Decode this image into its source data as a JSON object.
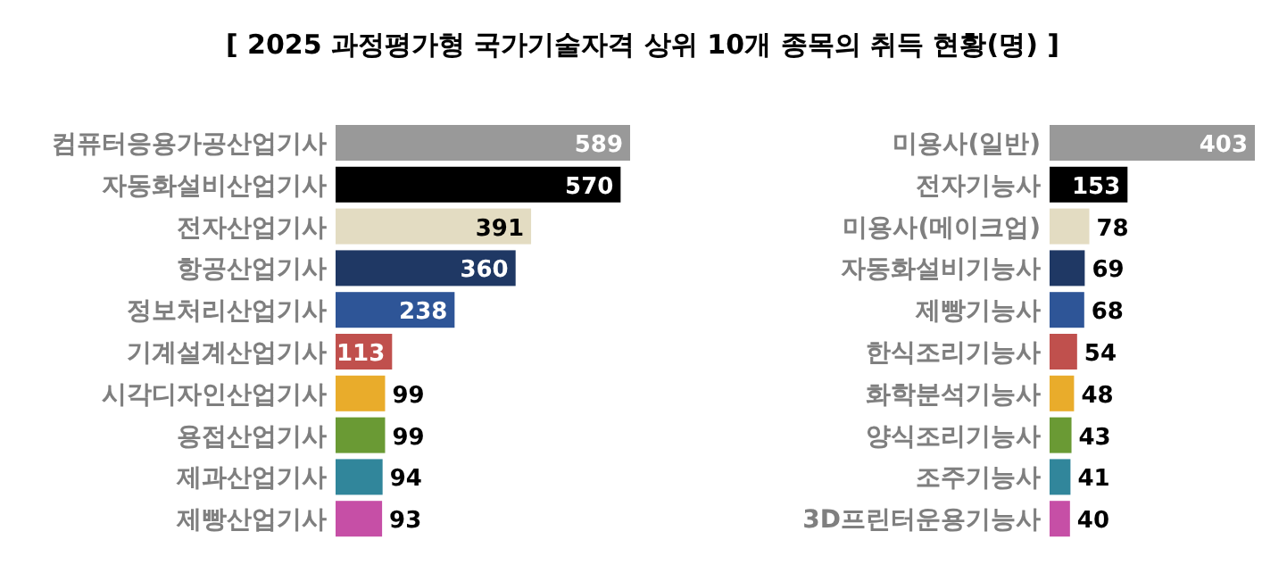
{
  "chart_data": [
    {
      "type": "bar",
      "orientation": "horizontal",
      "title": "[ 2025 과정평가형 국가기술자격 상위 10개 종목의 취득 현황(명) ]",
      "categories": [
        "컴퓨터응용가공산업기사",
        "자동화설비산업기사",
        "전자산업기사",
        "항공산업기사",
        "정보처리산업기사",
        "기계설계산업기사",
        "시각디자인산업기사",
        "용접산업기사",
        "제과산업기사",
        "제빵산업기사"
      ],
      "values": [
        589,
        570,
        391,
        360,
        238,
        113,
        99,
        99,
        94,
        93
      ],
      "colors": [
        "#999999",
        "#000000",
        "#e3dcc2",
        "#1f3864",
        "#2e5597",
        "#c0504d",
        "#e9ac2b",
        "#6a9a34",
        "#31869b",
        "#c64fa6"
      ],
      "data_labels": true
    },
    {
      "type": "bar",
      "orientation": "horizontal",
      "categories": [
        "미용사(일반)",
        "전자기능사",
        "미용사(메이크업)",
        "자동화설비기능사",
        "제빵기능사",
        "한식조리기능사",
        "화학분석기능사",
        "양식조리기능사",
        "조주기능사",
        "3D프린터운용기능사"
      ],
      "values": [
        403,
        153,
        78,
        69,
        68,
        54,
        48,
        43,
        41,
        40
      ],
      "colors": [
        "#999999",
        "#000000",
        "#e3dcc2",
        "#1f3864",
        "#2e5597",
        "#c0504d",
        "#e9ac2b",
        "#6a9a34",
        "#31869b",
        "#c64fa6"
      ],
      "data_labels": true
    }
  ]
}
